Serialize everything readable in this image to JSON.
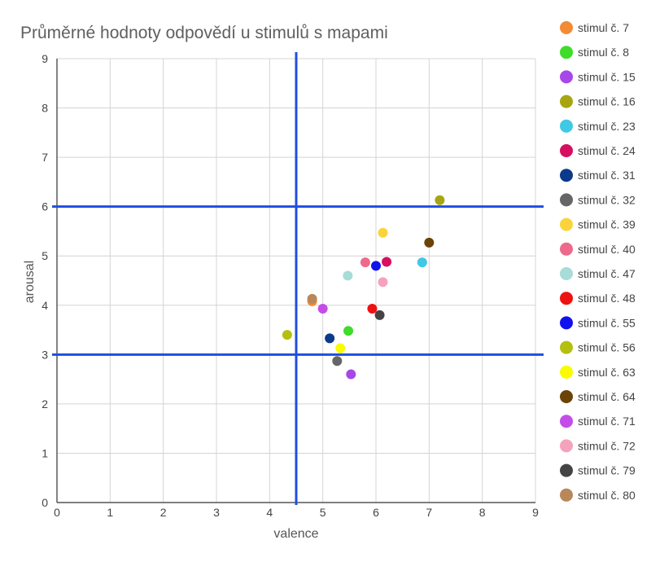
{
  "chart_data": {
    "type": "scatter",
    "title": "Průměrné hodnoty odpovědí u stimulů s mapami",
    "xlabel": "valence",
    "ylabel": "arousal",
    "xlim": [
      0,
      9
    ],
    "ylim": [
      0,
      9
    ],
    "xticks": [
      "0",
      "1",
      "2",
      "3",
      "4",
      "5",
      "6",
      "7",
      "8",
      "9"
    ],
    "yticks": [
      "0",
      "1",
      "2",
      "3",
      "4",
      "5",
      "6",
      "7",
      "8",
      "9"
    ],
    "grid": true,
    "legend_position": "right",
    "reference_lines": [
      {
        "orientation": "vertical",
        "value": 4.5
      },
      {
        "orientation": "horizontal",
        "value": 6.0
      },
      {
        "orientation": "horizontal",
        "value": 3.0
      }
    ],
    "reference_line_color": "#1f4fe0",
    "series": [
      {
        "name": "stimul č. 7",
        "color": "#f28b34",
        "x": 4.8,
        "y": 4.08
      },
      {
        "name": "stimul č. 8",
        "color": "#3fdc2a",
        "x": 5.48,
        "y": 3.48
      },
      {
        "name": "stimul č. 15",
        "color": "#a847e8",
        "x": 5.53,
        "y": 2.6
      },
      {
        "name": "stimul č. 16",
        "color": "#a7a611",
        "x": 7.2,
        "y": 6.13
      },
      {
        "name": "stimul č. 23",
        "color": "#3fc9e4",
        "x": 6.87,
        "y": 4.87
      },
      {
        "name": "stimul č. 24",
        "color": "#d60f5f",
        "x": 6.2,
        "y": 4.88
      },
      {
        "name": "stimul č. 31",
        "color": "#0b3a8c",
        "x": 5.13,
        "y": 3.33
      },
      {
        "name": "stimul č. 32",
        "color": "#666666",
        "x": 5.27,
        "y": 2.87
      },
      {
        "name": "stimul č. 39",
        "color": "#fbd33b",
        "x": 6.13,
        "y": 5.47
      },
      {
        "name": "stimul č. 40",
        "color": "#ee6a8a",
        "x": 5.8,
        "y": 4.87
      },
      {
        "name": "stimul č. 47",
        "color": "#a8dcd6",
        "x": 5.47,
        "y": 4.6
      },
      {
        "name": "stimul č. 48",
        "color": "#ee1111",
        "x": 5.93,
        "y": 3.93
      },
      {
        "name": "stimul č. 55",
        "color": "#1111ee",
        "x": 6.0,
        "y": 4.8
      },
      {
        "name": "stimul č. 56",
        "color": "#b3c00f",
        "x": 4.33,
        "y": 3.4
      },
      {
        "name": "stimul č. 63",
        "color": "#fafa00",
        "x": 5.33,
        "y": 3.13
      },
      {
        "name": "stimul č. 64",
        "color": "#6b4306",
        "x": 7.0,
        "y": 5.27
      },
      {
        "name": "stimul č. 71",
        "color": "#c44de8",
        "x": 5.0,
        "y": 3.93
      },
      {
        "name": "stimul č. 72",
        "color": "#f5a3bd",
        "x": 6.13,
        "y": 4.47
      },
      {
        "name": "stimul č. 79",
        "color": "#444444",
        "x": 6.07,
        "y": 3.8
      },
      {
        "name": "stimul č. 80",
        "color": "#b8875a",
        "x": 4.8,
        "y": 4.13
      }
    ]
  }
}
